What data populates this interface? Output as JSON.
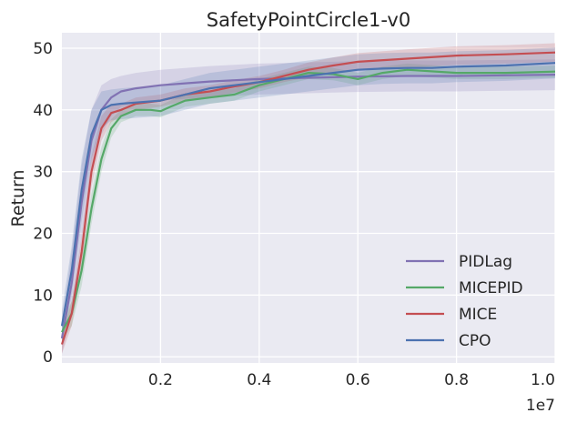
{
  "chart_data": {
    "type": "line",
    "title": "SafetyPointCircle1-v0",
    "xlabel": "",
    "ylabel": "Return",
    "x_offset_text": "1e7",
    "xlim": [
      0.0,
      1.0
    ],
    "ylim": [
      -1,
      52.5
    ],
    "x_ticks": [
      0.2,
      0.4,
      0.6,
      0.8,
      1.0
    ],
    "x_tick_labels": [
      "0.2",
      "0.4",
      "0.6",
      "0.8",
      "1.0"
    ],
    "y_ticks": [
      0,
      10,
      20,
      30,
      40,
      50
    ],
    "y_tick_labels": [
      "0",
      "10",
      "20",
      "30",
      "40",
      "50"
    ],
    "grid": true,
    "legend_position": "lower-right",
    "series": [
      {
        "name": "PIDLag",
        "color": "#8172B3",
        "x": [
          0.0,
          0.02,
          0.04,
          0.06,
          0.08,
          0.1,
          0.12,
          0.15,
          0.2,
          0.25,
          0.3,
          0.35,
          0.4,
          0.45,
          0.5,
          0.55,
          0.6,
          0.7,
          0.8,
          0.9,
          1.0
        ],
        "values": [
          3,
          12,
          25,
          35,
          40,
          42,
          43,
          43.5,
          44,
          44.3,
          44.6,
          44.8,
          45,
          45.1,
          45.2,
          45.3,
          45.4,
          45.5,
          45.5,
          45.6,
          45.7
        ],
        "band": [
          2.5,
          5,
          6,
          5,
          4,
          3,
          2.5,
          2.5,
          2.5,
          2.5,
          2.5,
          2.5,
          2.5,
          2.5,
          2.5,
          2.5,
          2.5,
          2.5,
          2.5,
          2.5,
          2.5
        ]
      },
      {
        "name": "MICEPID",
        "color": "#55A868",
        "x": [
          0.0,
          0.02,
          0.04,
          0.06,
          0.08,
          0.1,
          0.12,
          0.15,
          0.18,
          0.2,
          0.22,
          0.25,
          0.3,
          0.35,
          0.4,
          0.45,
          0.5,
          0.55,
          0.6,
          0.65,
          0.7,
          0.8,
          0.9,
          1.0
        ],
        "values": [
          4,
          7,
          14,
          24,
          32,
          37,
          39,
          40,
          40,
          39.8,
          40.5,
          41.5,
          42,
          42.5,
          44,
          45,
          46,
          45.8,
          45,
          46,
          46.5,
          46,
          46,
          46.2
        ],
        "band": [
          1.5,
          2,
          2.5,
          2.5,
          2,
          1.5,
          1,
          1,
          1,
          1,
          1,
          1,
          1,
          1,
          1,
          1,
          1,
          1,
          1,
          1,
          1,
          1,
          1,
          1
        ]
      },
      {
        "name": "MICE",
        "color": "#C44E52",
        "x": [
          0.0,
          0.02,
          0.04,
          0.06,
          0.08,
          0.1,
          0.12,
          0.15,
          0.2,
          0.25,
          0.3,
          0.35,
          0.4,
          0.45,
          0.5,
          0.55,
          0.6,
          0.7,
          0.8,
          0.9,
          1.0
        ],
        "values": [
          2,
          7,
          17,
          30,
          37,
          39.5,
          40,
          41,
          41.5,
          42.5,
          43,
          43.8,
          44.5,
          45.5,
          46.5,
          47.2,
          47.8,
          48.3,
          48.8,
          49,
          49.3
        ],
        "band": [
          1.5,
          2,
          2.5,
          2.5,
          2,
          1.5,
          1,
          1,
          1,
          1,
          1,
          1,
          1,
          1,
          1.2,
          1.3,
          1.4,
          1.5,
          1.5,
          1.5,
          1.5
        ]
      },
      {
        "name": "CPO",
        "color": "#4C72B0",
        "x": [
          0.0,
          0.02,
          0.04,
          0.06,
          0.08,
          0.1,
          0.12,
          0.15,
          0.2,
          0.25,
          0.3,
          0.35,
          0.4,
          0.45,
          0.5,
          0.55,
          0.6,
          0.65,
          0.7,
          0.75,
          0.8,
          0.9,
          1.0
        ],
        "values": [
          5,
          14,
          27,
          36,
          40,
          40.8,
          41,
          41.2,
          41.5,
          42.5,
          43.5,
          44,
          44.5,
          45,
          45.5,
          46,
          46.5,
          46.7,
          46.8,
          46.8,
          47,
          47.2,
          47.6
        ],
        "band": [
          2.5,
          4,
          5,
          4,
          3,
          2.5,
          2.5,
          2.5,
          2.5,
          2.5,
          2.5,
          2.5,
          2.5,
          2.5,
          2.5,
          2.5,
          2.5,
          2.5,
          2.5,
          2.5,
          2.5,
          2.5,
          2.5
        ]
      }
    ],
    "legend_order": [
      "PIDLag",
      "MICEPID",
      "MICE",
      "CPO"
    ]
  }
}
